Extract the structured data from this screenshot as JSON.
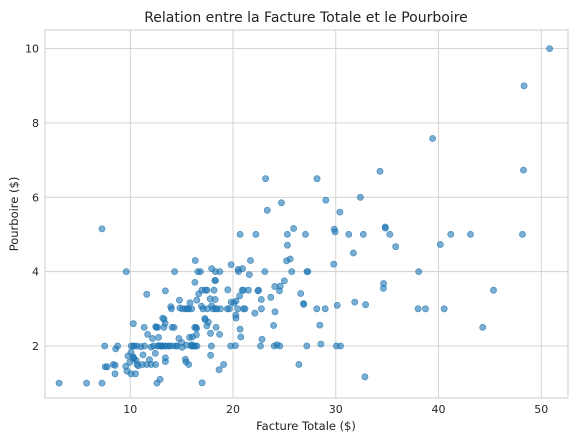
{
  "chart_data": {
    "type": "scatter",
    "title": "Relation entre la Facture Totale et le Pourboire",
    "xlabel": "Facture Totale ($)",
    "ylabel": "Pourboire ($)",
    "xlim": [
      1.7,
      52.6
    ],
    "ylim": [
      0.6,
      10.5
    ],
    "xticks": [
      "10",
      "20",
      "30",
      "40",
      "50"
    ],
    "yticks": [
      "2",
      "4",
      "6",
      "8",
      "10"
    ],
    "grid": true,
    "color": "#1f77b4",
    "points": [
      [
        16.99,
        1.01
      ],
      [
        10.34,
        1.66
      ],
      [
        21.01,
        3.5
      ],
      [
        23.68,
        3.31
      ],
      [
        24.59,
        3.61
      ],
      [
        25.29,
        4.71
      ],
      [
        8.77,
        2.0
      ],
      [
        26.88,
        3.12
      ],
      [
        15.04,
        1.96
      ],
      [
        14.78,
        3.23
      ],
      [
        10.27,
        1.71
      ],
      [
        35.26,
        5.0
      ],
      [
        15.42,
        1.57
      ],
      [
        18.43,
        3.0
      ],
      [
        14.83,
        3.02
      ],
      [
        21.58,
        3.92
      ],
      [
        10.33,
        1.67
      ],
      [
        16.29,
        3.71
      ],
      [
        16.97,
        3.5
      ],
      [
        20.65,
        3.35
      ],
      [
        17.92,
        4.08
      ],
      [
        20.29,
        2.75
      ],
      [
        15.77,
        2.23
      ],
      [
        39.42,
        7.58
      ],
      [
        19.82,
        3.18
      ],
      [
        17.81,
        2.34
      ],
      [
        13.37,
        2.0
      ],
      [
        12.69,
        2.0
      ],
      [
        21.7,
        4.3
      ],
      [
        19.65,
        3.0
      ],
      [
        9.55,
        1.45
      ],
      [
        18.35,
        2.5
      ],
      [
        15.06,
        3.0
      ],
      [
        20.69,
        2.45
      ],
      [
        17.78,
        3.27
      ],
      [
        24.06,
        3.6
      ],
      [
        16.31,
        2.0
      ],
      [
        16.93,
        3.07
      ],
      [
        18.69,
        2.31
      ],
      [
        31.27,
        5.0
      ],
      [
        16.04,
        2.24
      ],
      [
        17.46,
        2.54
      ],
      [
        13.94,
        3.06
      ],
      [
        9.68,
        1.32
      ],
      [
        30.4,
        5.6
      ],
      [
        18.29,
        3.0
      ],
      [
        22.23,
        5.0
      ],
      [
        32.4,
        6.0
      ],
      [
        28.55,
        2.05
      ],
      [
        18.04,
        3.0
      ],
      [
        12.54,
        2.5
      ],
      [
        10.29,
        2.6
      ],
      [
        34.81,
        5.2
      ],
      [
        9.94,
        1.56
      ],
      [
        25.56,
        4.34
      ],
      [
        19.49,
        3.51
      ],
      [
        38.01,
        3.0
      ],
      [
        26.41,
        1.5
      ],
      [
        11.24,
        1.76
      ],
      [
        48.27,
        6.73
      ],
      [
        20.29,
        3.21
      ],
      [
        13.81,
        2.0
      ],
      [
        11.02,
        1.98
      ],
      [
        18.29,
        3.76
      ],
      [
        17.59,
        2.64
      ],
      [
        20.08,
        3.15
      ],
      [
        16.45,
        2.47
      ],
      [
        3.07,
        1.0
      ],
      [
        20.23,
        2.01
      ],
      [
        15.01,
        2.09
      ],
      [
        12.02,
        1.97
      ],
      [
        17.07,
        3.0
      ],
      [
        26.86,
        3.14
      ],
      [
        25.28,
        5.0
      ],
      [
        14.73,
        2.2
      ],
      [
        10.51,
        1.25
      ],
      [
        17.92,
        3.08
      ],
      [
        27.2,
        4.0
      ],
      [
        22.76,
        3.0
      ],
      [
        17.29,
        2.71
      ],
      [
        19.44,
        3.0
      ],
      [
        16.66,
        3.4
      ],
      [
        10.07,
        1.83
      ],
      [
        32.68,
        5.0
      ],
      [
        15.98,
        2.03
      ],
      [
        34.83,
        5.17
      ],
      [
        13.03,
        2.0
      ],
      [
        18.28,
        4.0
      ],
      [
        24.71,
        5.85
      ],
      [
        21.16,
        3.0
      ],
      [
        28.97,
        3.0
      ],
      [
        22.49,
        3.5
      ],
      [
        5.75,
        1.0
      ],
      [
        16.32,
        4.3
      ],
      [
        22.75,
        3.25
      ],
      [
        40.17,
        4.73
      ],
      [
        27.28,
        4.0
      ],
      [
        12.03,
        1.5
      ],
      [
        21.01,
        3.0
      ],
      [
        12.46,
        1.5
      ],
      [
        11.35,
        2.5
      ],
      [
        15.38,
        3.0
      ],
      [
        44.3,
        2.5
      ],
      [
        22.42,
        3.48
      ],
      [
        20.92,
        4.08
      ],
      [
        15.36,
        1.64
      ],
      [
        20.49,
        4.06
      ],
      [
        25.21,
        4.29
      ],
      [
        18.24,
        3.76
      ],
      [
        14.31,
        4.0
      ],
      [
        14.0,
        3.0
      ],
      [
        7.25,
        1.0
      ],
      [
        38.07,
        4.0
      ],
      [
        23.95,
        2.55
      ],
      [
        25.71,
        4.0
      ],
      [
        17.31,
        3.5
      ],
      [
        29.93,
        5.07
      ],
      [
        10.65,
        1.5
      ],
      [
        12.43,
        1.8
      ],
      [
        24.08,
        2.92
      ],
      [
        11.69,
        2.31
      ],
      [
        13.42,
        1.68
      ],
      [
        14.26,
        2.5
      ],
      [
        15.95,
        2.0
      ],
      [
        12.48,
        2.52
      ],
      [
        29.8,
        4.2
      ],
      [
        8.52,
        1.48
      ],
      [
        14.52,
        2.0
      ],
      [
        11.38,
        2.0
      ],
      [
        22.82,
        2.18
      ],
      [
        19.08,
        1.5
      ],
      [
        20.27,
        2.83
      ],
      [
        11.17,
        1.5
      ],
      [
        12.26,
        2.0
      ],
      [
        18.26,
        3.25
      ],
      [
        8.51,
        1.25
      ],
      [
        10.33,
        2.0
      ],
      [
        14.15,
        2.0
      ],
      [
        16.0,
        2.0
      ],
      [
        13.16,
        2.75
      ],
      [
        17.47,
        3.5
      ],
      [
        34.3,
        6.7
      ],
      [
        41.19,
        5.0
      ],
      [
        27.05,
        5.0
      ],
      [
        16.43,
        2.3
      ],
      [
        8.35,
        1.5
      ],
      [
        18.64,
        1.36
      ],
      [
        11.87,
        1.63
      ],
      [
        9.78,
        1.73
      ],
      [
        7.51,
        2.0
      ],
      [
        14.07,
        2.5
      ],
      [
        13.13,
        2.0
      ],
      [
        17.26,
        2.74
      ],
      [
        24.55,
        2.0
      ],
      [
        19.77,
        2.0
      ],
      [
        29.85,
        5.14
      ],
      [
        48.17,
        5.0
      ],
      [
        25.0,
        3.75
      ],
      [
        13.39,
        2.61
      ],
      [
        16.49,
        2.0
      ],
      [
        21.5,
        3.5
      ],
      [
        12.66,
        2.5
      ],
      [
        16.21,
        2.0
      ],
      [
        13.81,
        2.0
      ],
      [
        17.51,
        3.0
      ],
      [
        24.52,
        3.48
      ],
      [
        20.76,
        2.24
      ],
      [
        31.71,
        4.5
      ],
      [
        10.59,
        1.61
      ],
      [
        10.63,
        2.0
      ],
      [
        50.81,
        10.0
      ],
      [
        15.81,
        3.16
      ],
      [
        7.25,
        5.15
      ],
      [
        31.85,
        3.18
      ],
      [
        16.82,
        4.0
      ],
      [
        32.9,
        3.11
      ],
      [
        17.89,
        2.0
      ],
      [
        14.48,
        2.0
      ],
      [
        9.6,
        4.0
      ],
      [
        34.63,
        3.55
      ],
      [
        34.65,
        3.68
      ],
      [
        23.33,
        5.65
      ],
      [
        45.35,
        3.5
      ],
      [
        23.17,
        6.5
      ],
      [
        40.55,
        3.0
      ],
      [
        20.69,
        5.0
      ],
      [
        20.9,
        3.5
      ],
      [
        30.46,
        2.0
      ],
      [
        18.15,
        3.5
      ],
      [
        23.1,
        4.0
      ],
      [
        15.69,
        1.5
      ],
      [
        19.81,
        4.19
      ],
      [
        28.44,
        2.56
      ],
      [
        15.48,
        2.02
      ],
      [
        16.58,
        4.0
      ],
      [
        7.56,
        1.44
      ],
      [
        10.34,
        2.0
      ],
      [
        43.11,
        5.0
      ],
      [
        13.0,
        2.0
      ],
      [
        13.51,
        2.0
      ],
      [
        18.71,
        4.0
      ],
      [
        12.74,
        2.01
      ],
      [
        13.0,
        2.0
      ],
      [
        16.4,
        2.5
      ],
      [
        20.53,
        4.0
      ],
      [
        16.47,
        3.23
      ],
      [
        26.59,
        3.41
      ],
      [
        38.73,
        3.0
      ],
      [
        24.27,
        2.03
      ],
      [
        12.76,
        2.23
      ],
      [
        30.06,
        2.0
      ],
      [
        25.89,
        5.16
      ],
      [
        48.33,
        9.0
      ],
      [
        13.27,
        2.5
      ],
      [
        28.17,
        6.5
      ],
      [
        12.9,
        1.1
      ],
      [
        28.15,
        3.0
      ],
      [
        11.59,
        1.5
      ],
      [
        7.74,
        1.44
      ],
      [
        30.14,
        3.09
      ],
      [
        12.16,
        2.2
      ],
      [
        13.42,
        3.48
      ],
      [
        8.58,
        1.92
      ],
      [
        15.98,
        3.0
      ],
      [
        13.42,
        1.58
      ],
      [
        16.27,
        2.5
      ],
      [
        10.09,
        2.0
      ],
      [
        20.45,
        3.0
      ],
      [
        13.28,
        2.72
      ],
      [
        22.12,
        2.88
      ],
      [
        24.01,
        2.0
      ],
      [
        15.69,
        3.0
      ],
      [
        11.61,
        3.39
      ],
      [
        10.77,
        1.47
      ],
      [
        15.53,
        3.0
      ],
      [
        10.07,
        1.25
      ],
      [
        12.6,
        1.0
      ],
      [
        32.83,
        1.17
      ],
      [
        35.83,
        4.67
      ],
      [
        29.03,
        5.92
      ],
      [
        27.18,
        2.0
      ],
      [
        22.67,
        2.0
      ],
      [
        17.82,
        1.75
      ],
      [
        18.78,
        3.0
      ]
    ]
  }
}
